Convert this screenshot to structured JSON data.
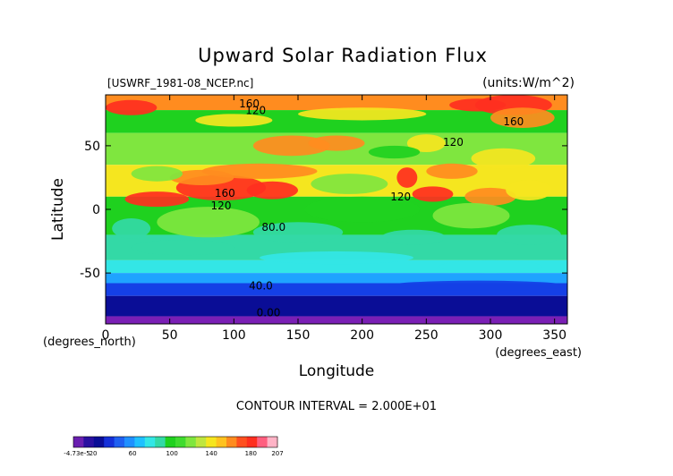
{
  "chart_data": {
    "type": "heatmap",
    "title": "Upward Solar Radiation Flux",
    "file_label": "[USWRF_1981-08_NCEP.nc]",
    "units_label": "(units:W/m^2)",
    "xlabel": "Longitude",
    "xunit_label": "(degrees_east)",
    "ylabel": "Latitude",
    "yunit_label": "(degrees_north)",
    "xlim": [
      0,
      360
    ],
    "ylim": [
      -90,
      90
    ],
    "x_ticks": [
      0,
      50,
      100,
      150,
      200,
      250,
      300,
      350
    ],
    "y_ticks": [
      50,
      0,
      -50
    ],
    "contour_interval_label": "CONTOUR INTERVAL = 2.000E+01",
    "contour_labels": [
      {
        "text": "160",
        "lon": 112,
        "lat": 80
      },
      {
        "text": "120",
        "lon": 117,
        "lat": 75
      },
      {
        "text": "160",
        "lon": 318,
        "lat": 66
      },
      {
        "text": "120",
        "lon": 271,
        "lat": 50
      },
      {
        "text": "160",
        "lon": 93,
        "lat": 10
      },
      {
        "text": "120",
        "lon": 90,
        "lat": 0
      },
      {
        "text": "120",
        "lon": 230,
        "lat": 7
      },
      {
        "text": "80.0",
        "lon": 131,
        "lat": -17
      },
      {
        "text": "40.0",
        "lon": 121,
        "lat": -63
      },
      {
        "text": "0.00",
        "lon": 127,
        "lat": -84
      }
    ],
    "colorbar": {
      "tick_labels": [
        "-4.73e-5",
        "20",
        "60",
        "100",
        "140",
        "180",
        "207"
      ],
      "tick_values": [
        0,
        20,
        60,
        100,
        140,
        180,
        207
      ],
      "min": 0,
      "max": 207
    },
    "colors": {
      "purple": "#7a1fb5",
      "navy": "#0a0d96",
      "blue": "#1540e6",
      "lightblue": "#1fa3ff",
      "cyan": "#33e6e6",
      "teal": "#33d9a6",
      "green": "#1fd11f",
      "lightgreen": "#7fe63f",
      "yellow": "#f5e61f",
      "orange": "#ff8c1f",
      "red": "#ff2f1f",
      "pink": "#ffb3c6"
    }
  }
}
